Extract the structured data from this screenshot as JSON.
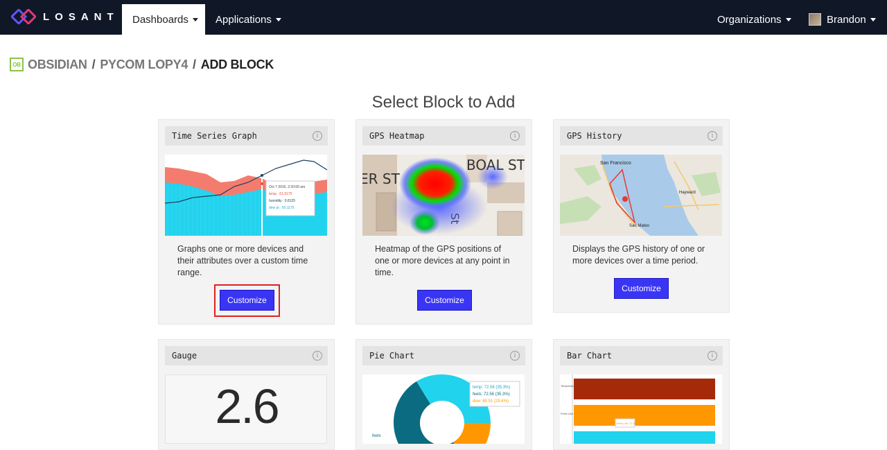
{
  "nav": {
    "brand": "LOSANT",
    "dashboards": "Dashboards",
    "applications": "Applications",
    "organizations": "Organizations",
    "user": "Brandon"
  },
  "breadcrumb": {
    "badge": "OB",
    "org": "OBSIDIAN",
    "dashboard": "PYCOM LOPY4",
    "current": "ADD BLOCK"
  },
  "page_title": "Select Block to Add",
  "info_glyph": "i",
  "cards": {
    "time_series": {
      "title": "Time Series Graph",
      "description": "Graphs one or more devices and their attributes over a custom time range.",
      "button": "Customize",
      "tooltip": {
        "date": "Oct 7 2016, 2:20:00 am",
        "temp": "temp : 61.9175",
        "humidity": "humidity : 0.8125",
        "dew": "dew pt : 50.1175"
      }
    },
    "gps_heatmap": {
      "title": "GPS Heatmap",
      "description": "Heatmap of the GPS positions of one or more devices at any point in time.",
      "button": "Customize",
      "street1": "BOAL ST",
      "street2": "ER ST",
      "street3": "St"
    },
    "gps_history": {
      "title": "GPS History",
      "description": "Displays the GPS history of one or more devices over a time period.",
      "button": "Customize",
      "city1": "San Francisco",
      "city2": "Hayward",
      "city3": "San Mateo"
    },
    "gauge": {
      "title": "Gauge",
      "value": "2.6"
    },
    "pie_chart": {
      "title": "Pie Chart",
      "tooltip": {
        "temp": "temp: 72.56 (35.3%)",
        "feels": "feels: 72.56 (35.3%)",
        "dew": "dew: 60.51 (29.4%)"
      },
      "label": "feels"
    },
    "bar_chart": {
      "title": "Bar Chart",
      "label1": "Temperature",
      "label2": "Feels Like",
      "tooltip": "feels Like 72.56"
    }
  },
  "colors": {
    "nav_bg": "#101828",
    "button": "#3a35f5",
    "highlight": "#e0201e",
    "org_badge": "#8bc34a"
  }
}
